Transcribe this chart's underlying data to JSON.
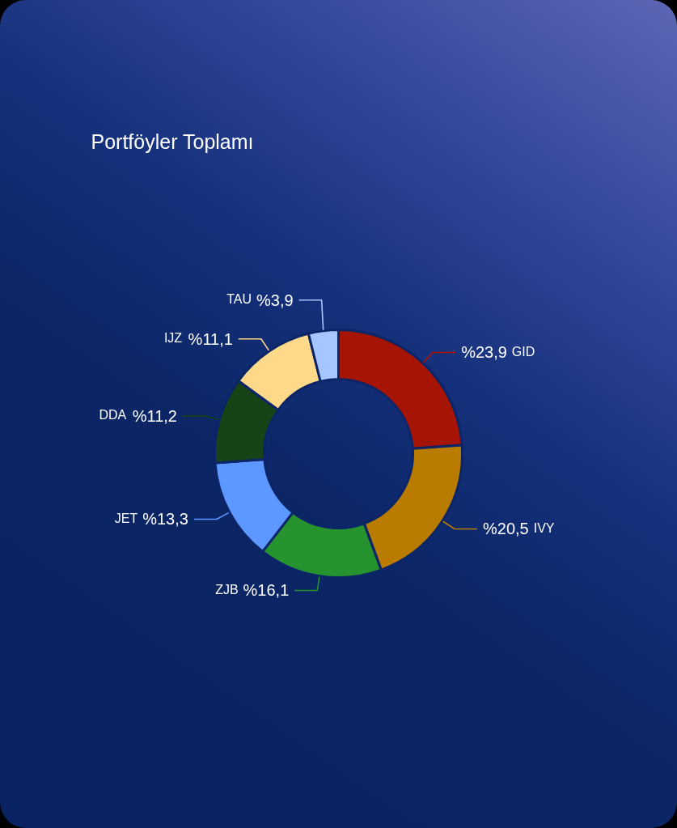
{
  "chart_data": {
    "type": "donut",
    "title": "Portföyler Toplamı",
    "categories": [
      "GID",
      "IVY",
      "ZJB",
      "JET",
      "DDA",
      "IJZ",
      "TAU"
    ],
    "values": [
      23.9,
      20.5,
      16.1,
      13.3,
      11.2,
      11.1,
      3.9
    ],
    "value_labels": [
      "%23,9",
      "%20,5",
      "%16,1",
      "%13,3",
      "%11,2",
      "%11,1",
      "%3,9"
    ],
    "colors": [
      "#a51405",
      "#b97b00",
      "#26932e",
      "#5c98ff",
      "#164416",
      "#ffd98a",
      "#a6c6ff"
    ]
  }
}
